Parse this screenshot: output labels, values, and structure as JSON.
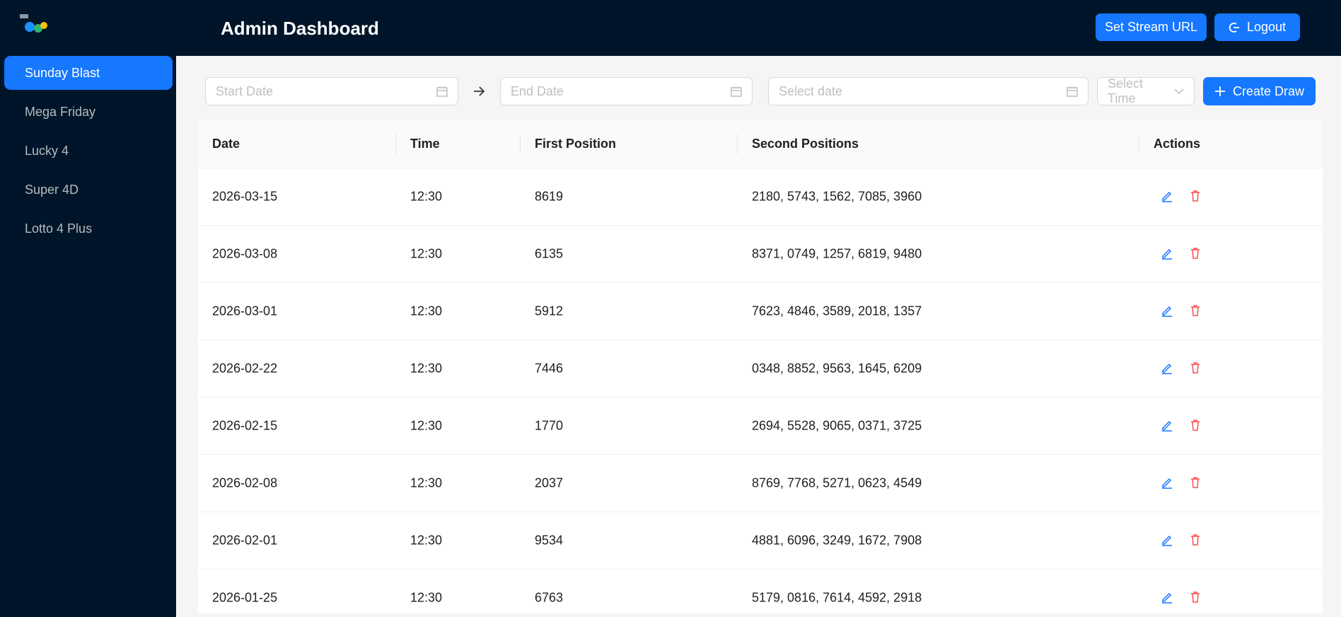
{
  "header": {
    "title": "Admin Dashboard",
    "buttons": [
      "Set Stream URL",
      "Logout"
    ]
  },
  "sidebar": {
    "items": [
      "Sunday Blast",
      "Mega Friday",
      "Lucky 4",
      "Super 4D",
      "Lotto 4 Plus"
    ]
  },
  "filters": {
    "start_date": "Start Date",
    "end_date": "End Date",
    "select_date": "Select date",
    "select_time": "Select Time",
    "create": "Create Draw"
  },
  "table": {
    "columns": [
      "Date",
      "Time",
      "First Position",
      "Second Positions",
      "Actions"
    ],
    "rows": [
      [
        "2026-03-15",
        "12:30",
        "8619",
        "2180, 5743, 1562, 7085, 3960"
      ],
      [
        "2026-03-08",
        "12:30",
        "6135",
        "8371, 0749, 1257, 6819, 9480"
      ],
      [
        "2026-03-01",
        "12:30",
        "5912",
        "7623, 4846, 3589, 2018, 1357"
      ],
      [
        "2026-02-22",
        "12:30",
        "7446",
        "0348, 8852, 9563, 1645, 6209"
      ],
      [
        "2026-02-15",
        "12:30",
        "1770",
        "2694, 5528, 9065, 0371, 3725"
      ],
      [
        "2026-02-08",
        "12:30",
        "2037",
        "8769, 7768, 5271, 0623, 4549"
      ],
      [
        "2026-02-01",
        "12:30",
        "9534",
        "4881, 6096, 3249, 1672, 7908"
      ],
      [
        "2026-01-25",
        "12:30",
        "6763",
        "5179, 0816, 7614, 4592, 2918"
      ]
    ]
  }
}
